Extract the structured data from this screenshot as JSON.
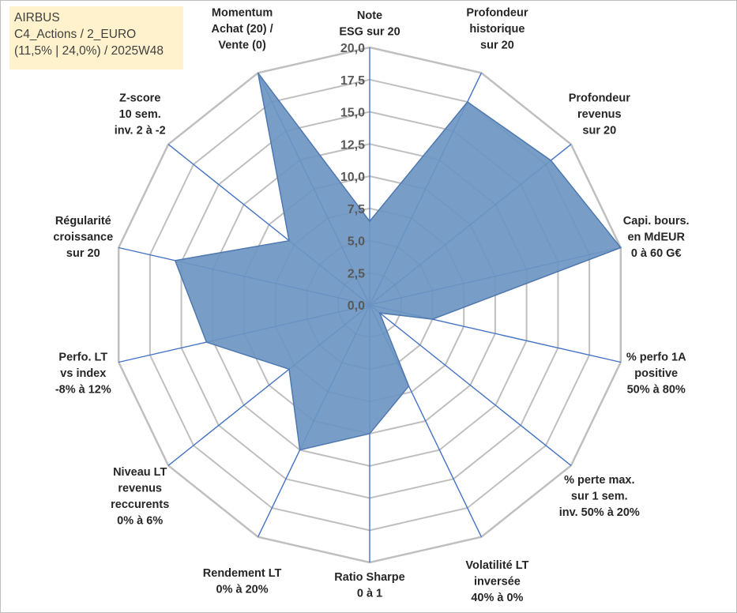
{
  "header": {
    "line1": "AIRBUS",
    "line2": "C4_Actions / 2_EURO",
    "line3": "(11,5% | 24,0%) / 2025W48"
  },
  "chart_data": {
    "type": "radar",
    "title": "",
    "rmin": 0,
    "rmax": 20,
    "tick_step": 2.5,
    "tick_labels": [
      "0,0",
      "2,5",
      "5,0",
      "7,5",
      "10,0",
      "12,5",
      "15,0",
      "17,5",
      "20,0"
    ],
    "grid": true,
    "colors": {
      "fill": "#6d96c2",
      "outline": "#4f78b0",
      "spoke": "#4472c4",
      "grid": "#bfbfbf"
    },
    "categories": [
      [
        "Note",
        "ESG sur 20"
      ],
      [
        "Profondeur",
        "historique",
        "sur 20"
      ],
      [
        "Profondeur",
        "revenus",
        "sur 20"
      ],
      [
        "Capi. bours.",
        "en MdEUR",
        "0 à 60 G€"
      ],
      [
        "% perfo 1A",
        "positive",
        "50% à 80%"
      ],
      [
        "% perte max.",
        "sur 1 sem.",
        "inv. 50% à 20%"
      ],
      [
        "Volatilité LT",
        "inversée",
        "40% à 0%"
      ],
      [
        "Ratio Sharpe",
        "0 à 1"
      ],
      [
        "Rendement LT",
        "0% à 20%"
      ],
      [
        "Niveau LT",
        "revenus",
        "reccurents",
        "0% à 6%"
      ],
      [
        "Perfo. LT",
        "vs index",
        "-8% à 12%"
      ],
      [
        "Régularité",
        "croissance",
        "sur 20"
      ],
      [
        "Z-score",
        "10 sem.",
        "inv. 2 à -2"
      ],
      [
        "Momentum",
        "Achat (20) /",
        "Vente (0)"
      ]
    ],
    "series": [
      {
        "name": "AIRBUS",
        "values": [
          6.5,
          17.5,
          18.0,
          20.0,
          5.0,
          1.0,
          7.0,
          10.0,
          12.5,
          8.0,
          13.0,
          15.5,
          8.0,
          20.0
        ]
      }
    ]
  }
}
